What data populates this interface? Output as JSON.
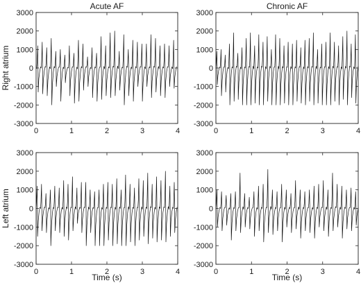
{
  "chart_data": [
    {
      "type": "line",
      "title": "Acute AF",
      "xlabel": "",
      "ylabel": "Right atrium",
      "xlim": [
        0,
        4
      ],
      "ylim": [
        -3000,
        3000
      ],
      "xticks": [
        "0",
        "1",
        "2",
        "3",
        "4"
      ],
      "yticks": [
        "3000",
        "2000",
        "1000",
        "0",
        "-1000",
        "-2000",
        "-3000"
      ],
      "grid": false,
      "cycle_length_s": 0.128,
      "series": [
        {
          "peaks": [
            1200,
            1400,
            1100,
            1600,
            900,
            1000,
            700,
            1200,
            800,
            1500,
            1300,
            600,
            1100,
            800,
            1700,
            1200,
            1900,
            2000,
            900,
            1800,
            1000,
            1500,
            1400,
            1300,
            1300,
            1800,
            1600,
            1200,
            1300,
            1200,
            1500
          ],
          "troughs": [
            -1300,
            -1400,
            -1500,
            -2000,
            -1000,
            -1800,
            -800,
            -1500,
            -1900,
            -1800,
            -1200,
            -1000,
            -1600,
            -1800,
            -1700,
            -1500,
            -1600,
            -1500,
            -1200,
            -2000,
            -1500,
            -1800,
            -1000,
            -1800,
            -1000,
            -1600,
            -1300,
            -1500,
            -1600,
            -1000,
            -1100
          ]
        }
      ]
    },
    {
      "type": "line",
      "title": "Chronic AF",
      "xlabel": "",
      "ylabel": "",
      "xlim": [
        0,
        4
      ],
      "ylim": [
        -3000,
        3000
      ],
      "xticks": [
        "0",
        "1",
        "2",
        "3",
        "4"
      ],
      "yticks": [
        "3000",
        "2000",
        "1000",
        "0",
        "-1000",
        "-2000",
        "-3000"
      ],
      "grid": false,
      "cycle_length_s": 0.118,
      "series": [
        {
          "peaks": [
            900,
            1000,
            700,
            1300,
            1900,
            800,
            1100,
            1600,
            1900,
            1200,
            1800,
            1400,
            1700,
            1000,
            1800,
            1600,
            1200,
            1400,
            1300,
            1500,
            1100,
            1500,
            1600,
            1900,
            1000,
            1300,
            1400,
            1900,
            1400,
            1200,
            1700,
            2000,
            1300,
            1800
          ],
          "troughs": [
            -900,
            -1500,
            -1300,
            -2000,
            -1800,
            -1700,
            -2000,
            -2000,
            -2000,
            -1900,
            -2000,
            -2000,
            -1800,
            -2000,
            -2000,
            -2000,
            -1900,
            -2000,
            -2000,
            -1800,
            -1900,
            -2000,
            -1800,
            -2000,
            -1900,
            -2000,
            -2000,
            -2000,
            -1800,
            -2000,
            -1700,
            -2000,
            -1600,
            -1900
          ]
        }
      ]
    },
    {
      "type": "line",
      "title": "",
      "xlabel": "Time (s)",
      "ylabel": "Left atrium",
      "xlim": [
        0,
        4
      ],
      "ylim": [
        -3000,
        3000
      ],
      "xticks": [
        "0",
        "1",
        "2",
        "3",
        "4"
      ],
      "yticks": [
        "3000",
        "2000",
        "1000",
        "0",
        "-1000",
        "-2000",
        "-3000"
      ],
      "grid": false,
      "cycle_length_s": 0.125,
      "series": [
        {
          "peaks": [
            1200,
            1300,
            800,
            1000,
            1200,
            1100,
            1500,
            1300,
            1700,
            1100,
            1400,
            1400,
            1000,
            900,
            1000,
            1300,
            1400,
            1300,
            1600,
            1000,
            1800,
            1300,
            1100,
            1600,
            1500,
            1900,
            1300,
            1700,
            1500,
            2000,
            1200,
            1400
          ],
          "troughs": [
            -1500,
            -1200,
            -1300,
            -2000,
            -1200,
            -1300,
            -1500,
            -1700,
            -1200,
            -800,
            -1300,
            -2000,
            -1300,
            -2000,
            -2000,
            -2000,
            -1700,
            -2000,
            -1900,
            -2000,
            -2000,
            -1800,
            -2000,
            -1700,
            -1500,
            -1900,
            -1600,
            -1800,
            -1700,
            -1800,
            -1500,
            -1300
          ]
        }
      ]
    },
    {
      "type": "line",
      "title": "",
      "xlabel": "Time (s)",
      "ylabel": "",
      "xlim": [
        0,
        4
      ],
      "ylim": [
        -3000,
        3000
      ],
      "xticks": [
        "0",
        "1",
        "2",
        "3",
        "4"
      ],
      "yticks": [
        "3000",
        "2000",
        "1000",
        "0",
        "-1000",
        "-2000",
        "-3000"
      ],
      "grid": false,
      "cycle_length_s": 0.13,
      "series": [
        {
          "peaks": [
            1000,
            900,
            700,
            800,
            900,
            1900,
            800,
            600,
            900,
            1200,
            1300,
            2100,
            1000,
            900,
            1300,
            1000,
            800,
            1500,
            1000,
            900,
            1000,
            1200,
            1300,
            1500,
            1000,
            1900,
            1300,
            1200,
            1000,
            1100,
            900
          ],
          "troughs": [
            -1000,
            -1200,
            -900,
            -1700,
            -1200,
            -1300,
            -1000,
            -1100,
            -1500,
            -1200,
            -1800,
            -1300,
            -1400,
            -1200,
            -1800,
            -1000,
            -1300,
            -1100,
            -1600,
            -1200,
            -1300,
            -1600,
            -1000,
            -1200,
            -1500,
            -1200,
            -1000,
            -1600,
            -1100,
            -1200,
            -900
          ]
        }
      ]
    }
  ]
}
